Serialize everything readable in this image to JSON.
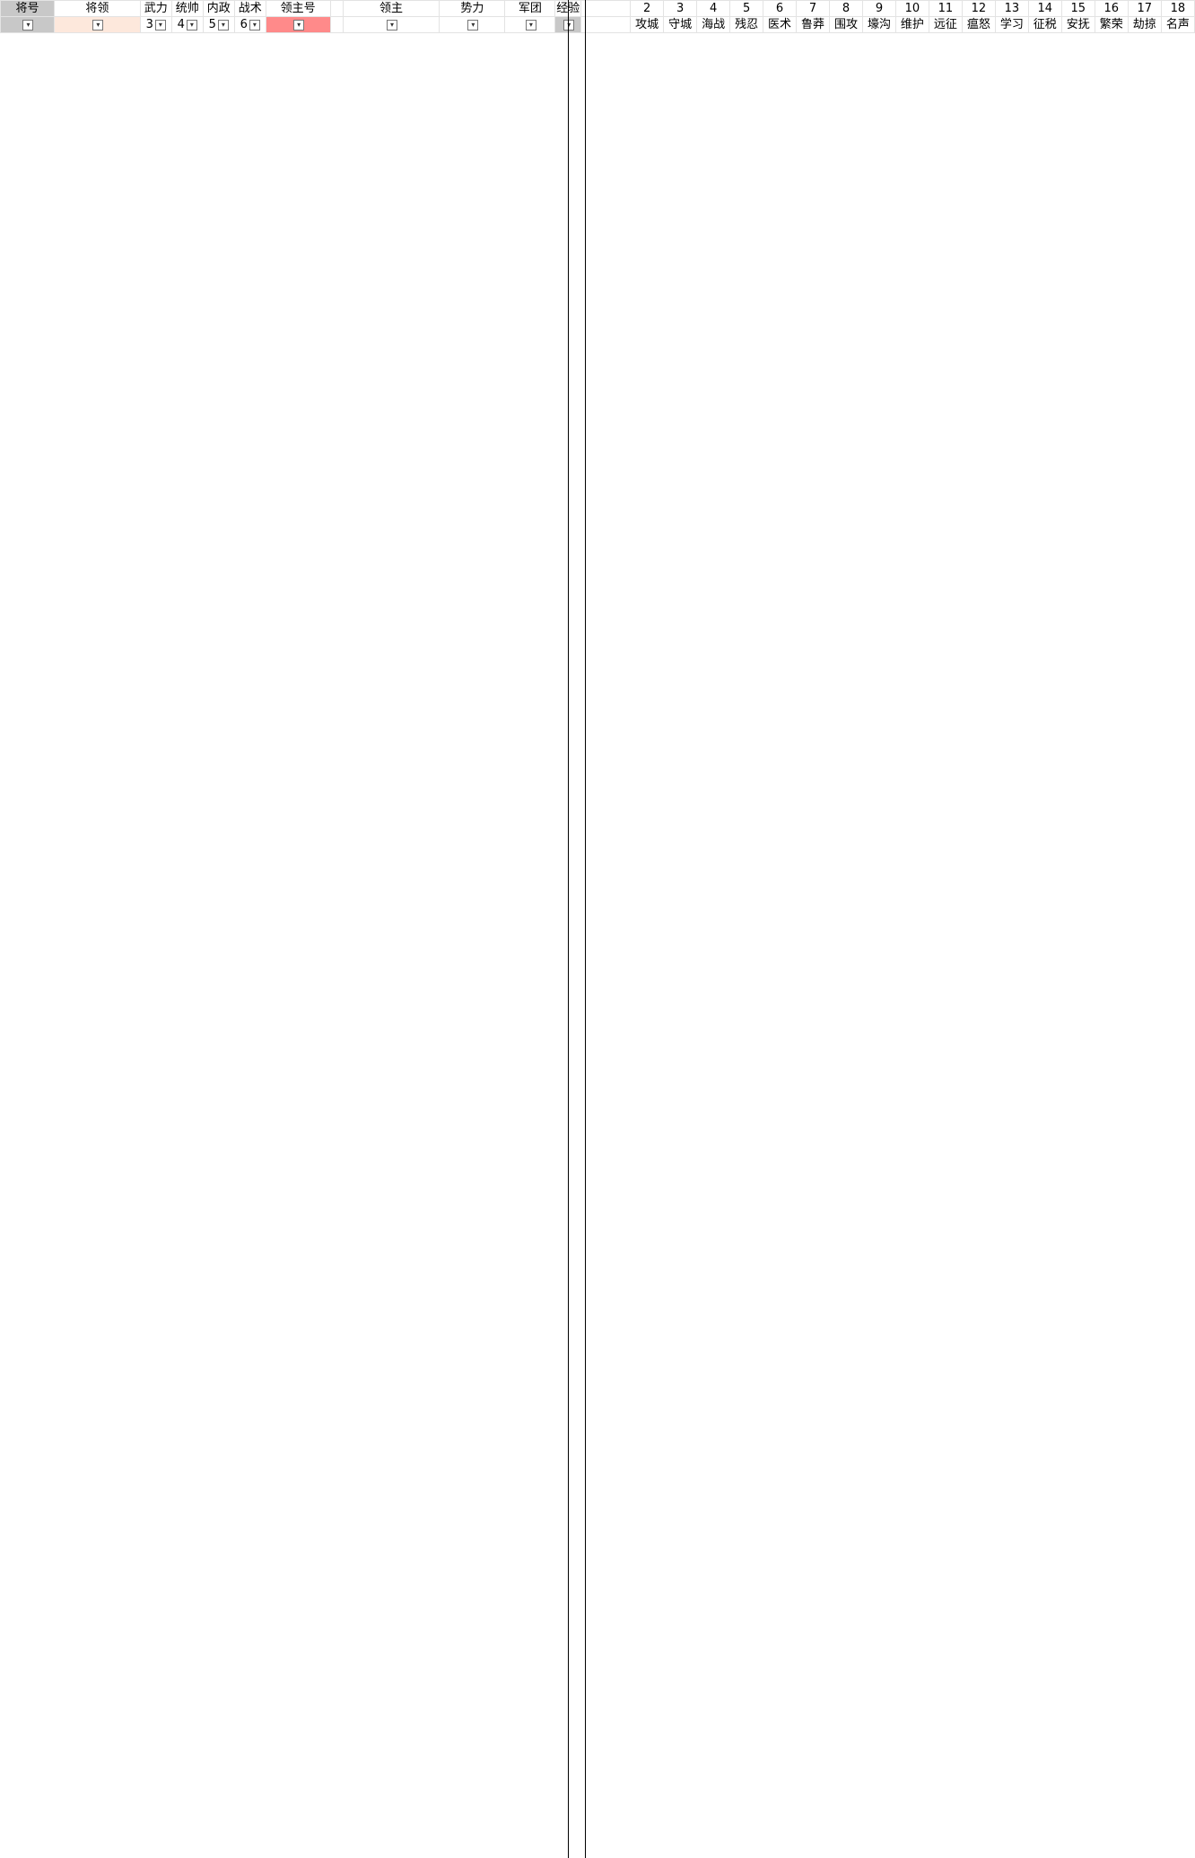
{
  "sheet": {
    "headers_top": {
      "c1": "将号",
      "c2": "将领",
      "c3": "武力",
      "c4": "统帅",
      "c5": "内政",
      "c6": "战术",
      "c7": "领主号",
      "c8": "",
      "c9": "领主",
      "c10": "势力",
      "c11": "军团",
      "c12": "经验",
      "s2": "2",
      "s3": "3",
      "s4": "4",
      "s5": "5",
      "s6": "6",
      "s7": "7",
      "s8": "8",
      "s9": "9",
      "s10": "10",
      "s11": "11",
      "s12": "12",
      "s13": "13",
      "s14": "14",
      "s15": "15",
      "s16": "16",
      "s17": "17",
      "s18": "18"
    },
    "headers_num": {
      "n3": "3",
      "n4": "4",
      "n5": "5",
      "n6": "6",
      "k2": "攻城",
      "k3": "守城",
      "k4": "海战",
      "k5": "残忍",
      "k6": "医术",
      "k7": "鲁莽",
      "k8": "围攻",
      "k9": "壕沟",
      "k10": "维护",
      "k11": "远征",
      "k12": "瘟怒",
      "k13": "学习",
      "k14": "征税",
      "k15": "安抚",
      "k16": "繁荣",
      "k17": "劫掠",
      "k18": "名声"
    }
  }
}
